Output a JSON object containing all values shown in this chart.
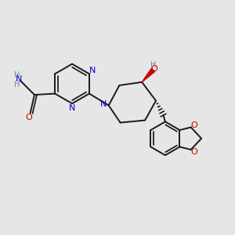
{
  "bg_color": "#e6e6e6",
  "bond_color": "#1a1a1a",
  "n_color": "#0000cc",
  "o_color": "#cc0000",
  "h_color": "#6b8e9f",
  "line_width": 1.4,
  "figsize": [
    3.0,
    3.0
  ],
  "dpi": 100,
  "xlim": [
    0,
    10
  ],
  "ylim": [
    0,
    10
  ]
}
